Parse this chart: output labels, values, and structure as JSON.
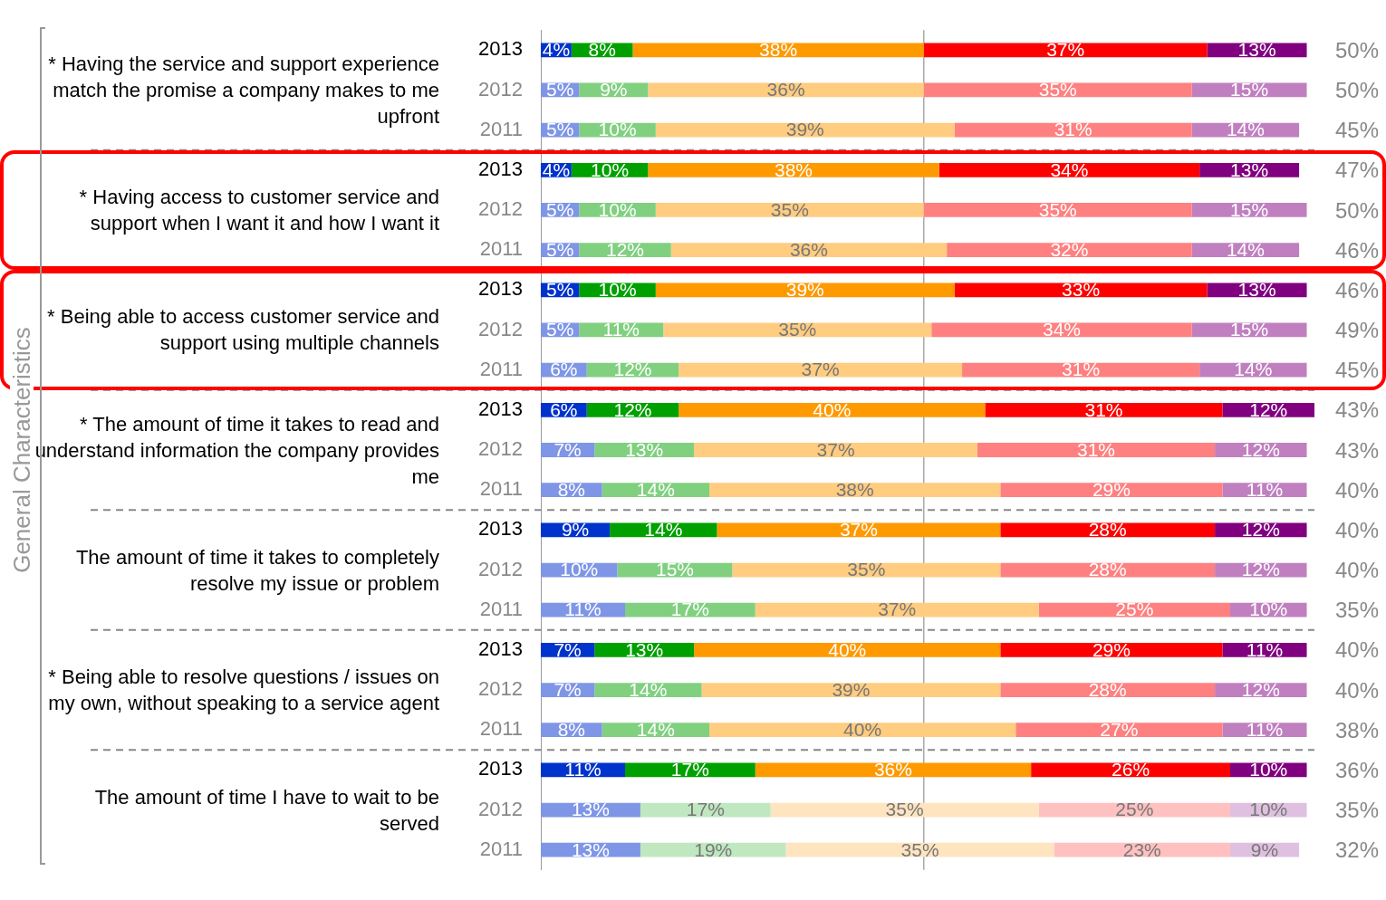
{
  "chart_data": {
    "type": "bar",
    "orientation": "horizontal",
    "stacked": true,
    "categories": [
      "2013",
      "2012",
      "2011",
      "2013",
      "2012",
      "2011",
      "2013",
      "2012",
      "2011",
      "2013",
      "2012",
      "2011",
      "2013",
      "2012",
      "2011",
      "2013",
      "2012",
      "2011",
      "2013",
      "2012",
      "2011"
    ],
    "xlim": [
      0,
      101
    ],
    "tick_labels": "y",
    "grid": false,
    "legend": false,
    "ref_lines": [
      {
        "axis": "x",
        "value": 50,
        "color": "#aaaaaa"
      }
    ],
    "annotations": [
      "General Characteristics",
      "* Having the service and support experience match the promise a company makes to me upfront",
      "* Having access to customer service and support when I want it and how I want it",
      "* Being able to access customer service and support using multiple channels",
      "* The amount of time it takes to read and understand information the company provides me",
      "The amount of time it takes to completely resolve my issue or problem",
      "* Being able to resolve questions / issues on my own, without speaking to a service agent",
      "The amount of time I have to wait to be served",
      "50%",
      "50%",
      "45%",
      "47%",
      "50%",
      "46%",
      "46%",
      "49%",
      "45%",
      "43%",
      "43%",
      "40%",
      "40%",
      "40%",
      "35%",
      "40%",
      "40%",
      "38%",
      "36%",
      "35%",
      "32%"
    ],
    "series": [
      {
        "values": [
          4,
          5,
          5,
          4,
          5,
          5,
          5,
          5,
          6,
          6,
          7,
          8,
          9,
          10,
          11,
          7,
          7,
          8,
          11,
          13,
          13
        ],
        "value_labels": [
          "4%",
          "5%",
          "5%",
          "4%",
          "5%",
          "5%",
          "5%",
          "5%",
          "6%",
          "6%",
          "7%",
          "8%",
          "9%",
          "10%",
          "11%",
          "7%",
          "7%",
          "8%",
          "11%",
          "13%",
          "13%"
        ],
        "colors": [
          "#0033cc",
          "#7f96e6",
          "#7f96e6",
          "#0033cc",
          "#7f96e6",
          "#7f96e6",
          "#0033cc",
          "#7f96e6",
          "#7f96e6",
          "#0033cc",
          "#7f96e6",
          "#7f96e6",
          "#0033cc",
          "#7f96e6",
          "#7f96e6",
          "#0033cc",
          "#7f96e6",
          "#7f96e6",
          "#0033cc",
          "#7f96e6",
          "#7f96e6"
        ]
      },
      {
        "values": [
          8,
          9,
          10,
          10,
          10,
          12,
          10,
          11,
          12,
          12,
          13,
          14,
          14,
          15,
          17,
          13,
          14,
          14,
          17,
          17,
          19
        ],
        "value_labels": [
          "8%",
          "9%",
          "10%",
          "10%",
          "10%",
          "12%",
          "10%",
          "11%",
          "12%",
          "12%",
          "13%",
          "14%",
          "14%",
          "15%",
          "17%",
          "13%",
          "14%",
          "14%",
          "17%",
          "17%",
          "19%"
        ],
        "colors": [
          "#00a000",
          "#80d080",
          "#80d080",
          "#00a000",
          "#80d080",
          "#80d080",
          "#00a000",
          "#80d080",
          "#80d080",
          "#00a000",
          "#80d080",
          "#80d080",
          "#00a000",
          "#80d080",
          "#80d080",
          "#00a000",
          "#80d080",
          "#80d080",
          "#00a000",
          "#c0e8c0",
          "#c0e8c0"
        ]
      },
      {
        "values": [
          38,
          36,
          39,
          38,
          35,
          36,
          39,
          35,
          37,
          40,
          37,
          38,
          37,
          35,
          37,
          40,
          39,
          40,
          36,
          35,
          35
        ],
        "value_labels": [
          "38%",
          "36%",
          "39%",
          "38%",
          "35%",
          "36%",
          "39%",
          "35%",
          "37%",
          "40%",
          "37%",
          "38%",
          "37%",
          "35%",
          "37%",
          "40%",
          "39%",
          "40%",
          "36%",
          "35%",
          "35%"
        ],
        "colors": [
          "#ff9900",
          "#ffcc80",
          "#ffcc80",
          "#ff9900",
          "#ffcc80",
          "#ffcc80",
          "#ff9900",
          "#ffcc80",
          "#ffcc80",
          "#ff9900",
          "#ffcc80",
          "#ffcc80",
          "#ff9900",
          "#ffcc80",
          "#ffcc80",
          "#ff9900",
          "#ffcc80",
          "#ffcc80",
          "#ff9900",
          "#ffe4c0",
          "#ffe4c0"
        ]
      },
      {
        "values": [
          37,
          35,
          31,
          34,
          35,
          32,
          33,
          34,
          31,
          31,
          31,
          29,
          28,
          28,
          25,
          29,
          28,
          27,
          26,
          25,
          23
        ],
        "value_labels": [
          "37%",
          "35%",
          "31%",
          "34%",
          "35%",
          "32%",
          "33%",
          "34%",
          "31%",
          "31%",
          "31%",
          "29%",
          "28%",
          "28%",
          "25%",
          "29%",
          "28%",
          "27%",
          "26%",
          "25%",
          "23%"
        ],
        "colors": [
          "#ff0000",
          "#ff8080",
          "#ff8080",
          "#ff0000",
          "#ff8080",
          "#ff8080",
          "#ff0000",
          "#ff8080",
          "#ff8080",
          "#ff0000",
          "#ff8080",
          "#ff8080",
          "#ff0000",
          "#ff8080",
          "#ff8080",
          "#ff0000",
          "#ff8080",
          "#ff8080",
          "#ff0000",
          "#ffc0c0",
          "#ffc0c0"
        ]
      },
      {
        "values": [
          13,
          15,
          14,
          13,
          15,
          14,
          13,
          15,
          14,
          12,
          12,
          11,
          12,
          12,
          10,
          11,
          12,
          11,
          10,
          10,
          9
        ],
        "value_labels": [
          "13%",
          "15%",
          "14%",
          "13%",
          "15%",
          "14%",
          "13%",
          "15%",
          "14%",
          "12%",
          "12%",
          "11%",
          "12%",
          "12%",
          "10%",
          "11%",
          "12%",
          "11%",
          "10%",
          "10%",
          "9%"
        ],
        "colors": [
          "#800080",
          "#c080c0",
          "#c080c0",
          "#800080",
          "#c080c0",
          "#c080c0",
          "#800080",
          "#c080c0",
          "#c080c0",
          "#800080",
          "#c080c0",
          "#c080c0",
          "#800080",
          "#c080c0",
          "#c080c0",
          "#800080",
          "#c080c0",
          "#c080c0",
          "#800080",
          "#e0c0e0",
          "#e0c0e0"
        ]
      }
    ]
  }
}
